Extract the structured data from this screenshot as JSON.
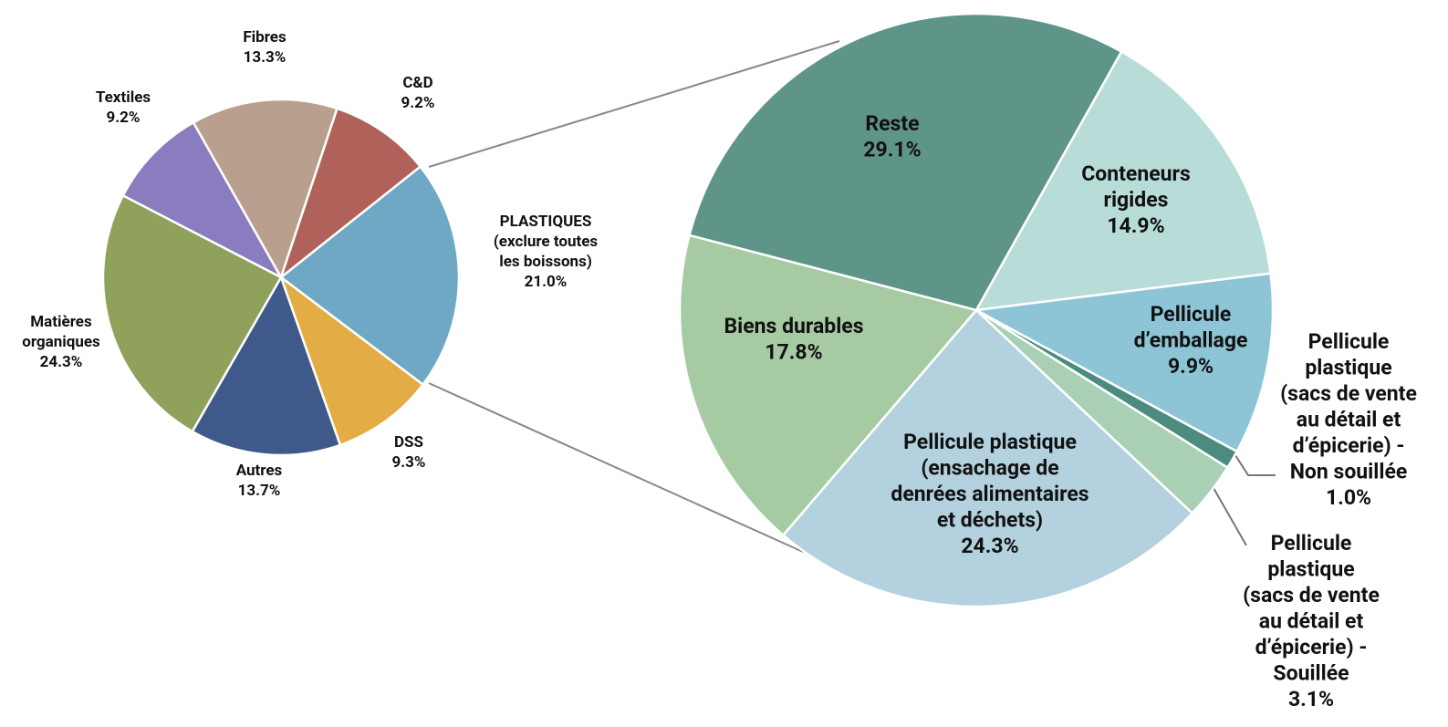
{
  "chart_data": [
    {
      "type": "pie",
      "labels": [
        [
          "PLASTIQUES",
          "(exclure toutes",
          "les boissons)"
        ],
        [
          "DSS"
        ],
        [
          "Autres"
        ],
        [
          "Matières",
          "organiques"
        ],
        [
          "Textiles"
        ],
        [
          "Fibres"
        ],
        [
          "C&D"
        ]
      ],
      "values": [
        21.0,
        9.3,
        13.7,
        24.3,
        9.2,
        13.3,
        9.2
      ],
      "value_labels": [
        "21.0%",
        "9.3%",
        "13.7%",
        "24.3%",
        "9.2%",
        "13.3%",
        "9.2%"
      ],
      "colors": [
        "#6fa8c4",
        "#e3ac45",
        "#3f5a8a",
        "#8fa15a",
        "#8b7bbf",
        "#b9a08e",
        "#b0625a"
      ]
    },
    {
      "type": "pie",
      "labels": [
        [
          "Conteneurs",
          "rigides"
        ],
        [
          "Pellicule",
          "d’emballage"
        ],
        [
          "Pellicule",
          "plastique",
          "(sacs de vente",
          "au détail et",
          "d’épicerie) -",
          "Non souillée"
        ],
        [
          "Pellicule",
          "plastique",
          "(sacs de vente",
          "au détail et",
          "d’épicerie) -",
          "Souillée"
        ],
        [
          "Pellicule plastique",
          "(ensachage de",
          "denrées alimentaires",
          "et déchets)"
        ],
        [
          "Biens durables"
        ],
        [
          "Reste"
        ]
      ],
      "values": [
        14.9,
        9.9,
        1.0,
        3.1,
        24.3,
        17.8,
        29.1
      ],
      "value_labels": [
        "14.9%",
        "9.9%",
        "1.0%",
        "3.1%",
        "24.3%",
        "17.8%",
        "29.1%"
      ],
      "colors": [
        "#b8ddd8",
        "#8ec5d6",
        "#4b8c7f",
        "#a9d0b4",
        "#b3d1de",
        "#a6cba3",
        "#5f9489"
      ]
    }
  ]
}
